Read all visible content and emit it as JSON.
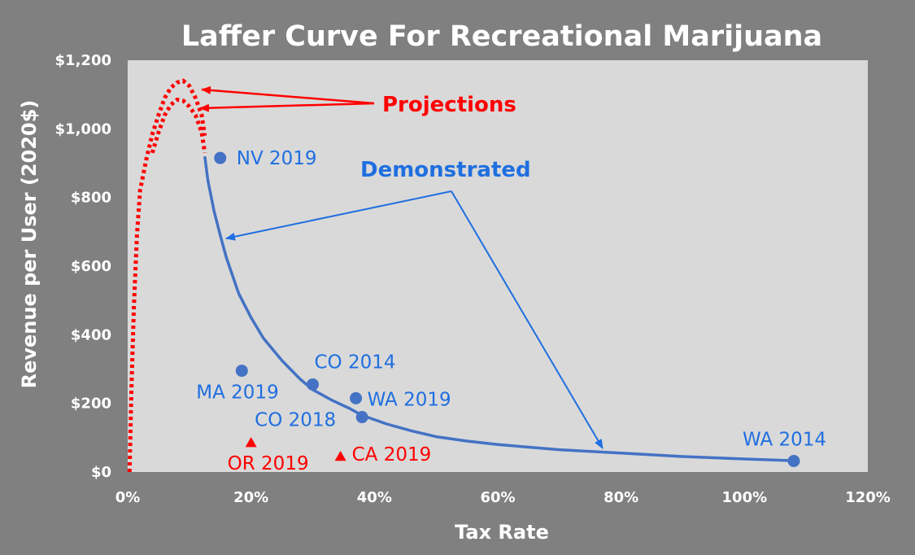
{
  "chart_data": {
    "type": "scatter",
    "title": "Laffer Curve For Recreational Marijuana",
    "xlabel": "Tax Rate",
    "ylabel": "Revenue per User (2020$)",
    "xlim": [
      0,
      1.2
    ],
    "ylim": [
      0,
      1200
    ],
    "x_ticks": [
      {
        "value": 0.0,
        "label": "0%"
      },
      {
        "value": 0.2,
        "label": "20%"
      },
      {
        "value": 0.4,
        "label": "40%"
      },
      {
        "value": 0.6,
        "label": "60%"
      },
      {
        "value": 0.8,
        "label": "80%"
      },
      {
        "value": 1.0,
        "label": "100%"
      },
      {
        "value": 1.2,
        "label": "120%"
      }
    ],
    "y_ticks": [
      {
        "value": 0,
        "label": "$0"
      },
      {
        "value": 200,
        "label": "$200"
      },
      {
        "value": 400,
        "label": "$400"
      },
      {
        "value": 600,
        "label": "$600"
      },
      {
        "value": 800,
        "label": "$800"
      },
      {
        "value": 1000,
        "label": "$1,000"
      },
      {
        "value": 1200,
        "label": "$1,200"
      }
    ],
    "grid": false,
    "series": [
      {
        "name": "Demonstrated",
        "color": "#4472c4",
        "marker": "circle",
        "points": [
          {
            "label": "NV 2019",
            "x": 0.15,
            "y": 915
          },
          {
            "label": "MA 2019",
            "x": 0.185,
            "y": 295
          },
          {
            "label": "CO 2014",
            "x": 0.3,
            "y": 255
          },
          {
            "label": "WA 2019",
            "x": 0.37,
            "y": 215
          },
          {
            "label": "CO 2018",
            "x": 0.38,
            "y": 160
          },
          {
            "label": "WA 2014",
            "x": 1.08,
            "y": 32
          }
        ]
      },
      {
        "color": "#ff0000",
        "marker": "triangle",
        "points": [
          {
            "label": "OR 2019",
            "x": 0.2,
            "y": 85
          },
          {
            "label": "CA 2019",
            "x": 0.345,
            "y": 45
          }
        ]
      }
    ],
    "curves": {
      "demonstrated": {
        "color": "#4472c4",
        "style": "solid",
        "points": [
          [
            0.125,
            920
          ],
          [
            0.13,
            850
          ],
          [
            0.14,
            760
          ],
          [
            0.15,
            690
          ],
          [
            0.16,
            625
          ],
          [
            0.18,
            520
          ],
          [
            0.2,
            450
          ],
          [
            0.22,
            390
          ],
          [
            0.25,
            325
          ],
          [
            0.28,
            270
          ],
          [
            0.3,
            240
          ],
          [
            0.33,
            210
          ],
          [
            0.36,
            185
          ],
          [
            0.38,
            165
          ],
          [
            0.42,
            140
          ],
          [
            0.46,
            120
          ],
          [
            0.5,
            103
          ],
          [
            0.55,
            90
          ],
          [
            0.6,
            80
          ],
          [
            0.7,
            65
          ],
          [
            0.8,
            55
          ],
          [
            0.9,
            45
          ],
          [
            1.0,
            38
          ],
          [
            1.08,
            33
          ]
        ]
      },
      "projection_high": {
        "color": "#ff0000",
        "style": "dotted",
        "points": [
          [
            0.003,
            0
          ],
          [
            0.006,
            240
          ],
          [
            0.01,
            480
          ],
          [
            0.015,
            690
          ],
          [
            0.02,
            820
          ],
          [
            0.03,
            910
          ],
          [
            0.04,
            985
          ],
          [
            0.05,
            1040
          ],
          [
            0.06,
            1090
          ],
          [
            0.07,
            1120
          ],
          [
            0.08,
            1135
          ],
          [
            0.09,
            1140
          ],
          [
            0.1,
            1125
          ],
          [
            0.11,
            1090
          ],
          [
            0.12,
            1040
          ],
          [
            0.125,
            980
          ]
        ]
      },
      "projection_low": {
        "color": "#ff0000",
        "style": "dotted",
        "points": [
          [
            0.04,
            930
          ],
          [
            0.05,
            990
          ],
          [
            0.06,
            1040
          ],
          [
            0.07,
            1070
          ],
          [
            0.08,
            1085
          ],
          [
            0.09,
            1082
          ],
          [
            0.1,
            1065
          ],
          [
            0.11,
            1040
          ],
          [
            0.12,
            990
          ],
          [
            0.125,
            930
          ]
        ]
      }
    },
    "annotations": [
      {
        "text": "Projections",
        "color": "#ff0000"
      },
      {
        "text": "Demonstrated",
        "color": "#4472c4"
      }
    ]
  }
}
